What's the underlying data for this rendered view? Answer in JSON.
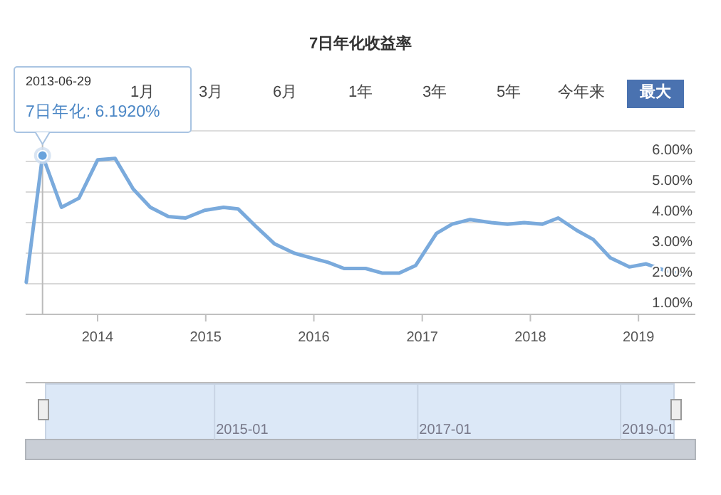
{
  "chart_data": {
    "type": "line",
    "title": "7日年化收益率",
    "x": [
      "2013-05-05",
      "2013-06-29",
      "2013-09-01",
      "2013-10-30",
      "2014-01-01",
      "2014-03-01",
      "2014-05-01",
      "2014-06-28",
      "2014-08-28",
      "2014-10-25",
      "2014-12-28",
      "2015-03-02",
      "2015-04-20",
      "2015-06-22",
      "2015-08-22",
      "2015-10-27",
      "2015-12-21",
      "2016-02-18",
      "2016-04-12",
      "2016-06-24",
      "2016-08-18",
      "2016-10-15",
      "2016-12-10",
      "2017-02-18",
      "2017-04-12",
      "2017-06-12",
      "2017-08-22",
      "2017-10-16",
      "2017-12-11",
      "2018-02-11",
      "2018-04-05",
      "2018-06-06",
      "2018-08-01",
      "2018-09-28",
      "2018-12-01",
      "2019-01-27",
      "2019-03-27",
      "2019-06-01"
    ],
    "series": [
      {
        "color": "#7aaadc",
        "values": [
          2.05,
          6.192,
          4.5,
          4.8,
          6.05,
          6.1,
          5.1,
          4.5,
          4.2,
          4.15,
          4.4,
          4.5,
          4.45,
          3.85,
          3.3,
          3.0,
          2.85,
          2.7,
          2.5,
          2.5,
          2.35,
          2.35,
          2.6,
          3.65,
          3.95,
          4.1,
          4.0,
          3.95,
          4.0,
          3.95,
          4.15,
          3.75,
          3.45,
          2.85,
          2.55,
          2.65,
          2.45,
          2.3
        ]
      }
    ],
    "xlim": [
      "2013-05-03",
      "2019-07-12"
    ],
    "xticks": [
      {
        "value": "2014-01-01",
        "label": "2014"
      },
      {
        "value": "2015-01-01",
        "label": "2015"
      },
      {
        "value": "2016-01-01",
        "label": "2016"
      },
      {
        "value": "2017-01-01",
        "label": "2017"
      },
      {
        "value": "2018-01-01",
        "label": "2018"
      },
      {
        "value": "2019-01-01",
        "label": "2019"
      }
    ],
    "ylim": [
      1,
      7
    ],
    "yticks": [
      {
        "value": 1,
        "label": "1.00%"
      },
      {
        "value": 2,
        "label": "2.00%"
      },
      {
        "value": 3,
        "label": "3.00%"
      },
      {
        "value": 4,
        "label": "4.00%"
      },
      {
        "value": 5,
        "label": "5.00%"
      },
      {
        "value": 6,
        "label": "6.00%"
      }
    ],
    "grid": "y",
    "marker": "none",
    "line_style": "solid",
    "ref_lines": [
      {
        "axis": "x",
        "value": "2013-06-29",
        "color": "#bbbbbb"
      }
    ],
    "annotations": [
      "1月",
      "3月",
      "6月",
      "1年",
      "3年",
      "5年",
      "今年来",
      "最大",
      "2015-01",
      "2017-01",
      "2019-01",
      "2013-06-29",
      "7日年化: 6.1920%"
    ]
  }
}
